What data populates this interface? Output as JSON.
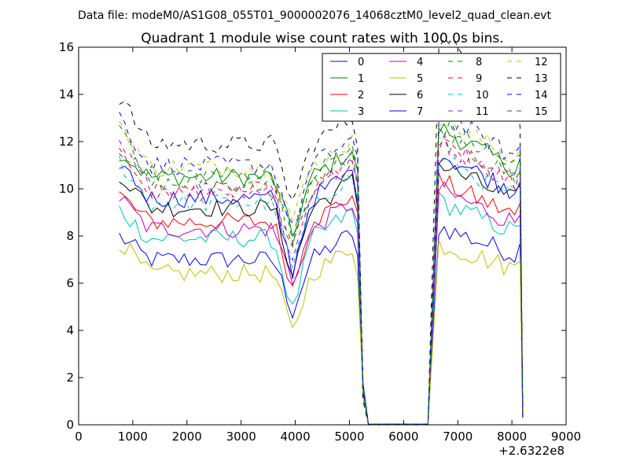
{
  "chart_data": {
    "type": "line",
    "suptitle": "Data file: modeM0/AS1G08_055T01_9000002076_14068cztM0_level2_quad_clean.evt",
    "title": "Quadrant 1 module wise count rates with 100.0s bins.",
    "xlabel": "",
    "ylabel": "",
    "x_offset_label": "+2.6322e8",
    "xlim": [
      0,
      9000
    ],
    "ylim": [
      0,
      16
    ],
    "x_ticks": [
      "0",
      "1000",
      "2000",
      "3000",
      "4000",
      "5000",
      "6000",
      "7000",
      "8000",
      "9000"
    ],
    "y_ticks": [
      "0",
      "2",
      "4",
      "6",
      "8",
      "10",
      "12",
      "14",
      "16"
    ],
    "grid": false,
    "legend_position": "top-right",
    "x": [
      750,
      850,
      950,
      1050,
      1150,
      1250,
      1350,
      1450,
      1550,
      1650,
      1750,
      1850,
      1950,
      2050,
      2150,
      2250,
      2350,
      2450,
      2550,
      2650,
      2750,
      2850,
      2950,
      3050,
      3150,
      3250,
      3350,
      3450,
      3550,
      3650,
      3750,
      3850,
      3950,
      4050,
      4150,
      4250,
      4350,
      4450,
      4550,
      4650,
      4750,
      4850,
      4950,
      5050,
      5150,
      5250,
      5350,
      5450,
      5550,
      5650,
      5750,
      5850,
      5950,
      6050,
      6150,
      6250,
      6350,
      6450,
      6550,
      6650,
      6750,
      6850,
      6950,
      7050,
      7150,
      7250,
      7350,
      7450,
      7550,
      7650,
      7750,
      7850,
      7950,
      8050,
      8150,
      8200
    ],
    "series": [
      {
        "name": "0",
        "color": "#0000ff",
        "dash": "solid",
        "level": 7.0
      },
      {
        "name": "1",
        "color": "#008000",
        "dash": "solid",
        "level": 10.5
      },
      {
        "name": "2",
        "color": "#ff0000",
        "dash": "solid",
        "level": 8.6
      },
      {
        "name": "3",
        "color": "#00bfbf",
        "dash": "solid",
        "level": 7.9
      },
      {
        "name": "4",
        "color": "#bf00bf",
        "dash": "solid",
        "level": 8.3
      },
      {
        "name": "5",
        "color": "#bfbf00",
        "dash": "solid",
        "level": 6.4
      },
      {
        "name": "6",
        "color": "#000000",
        "dash": "solid",
        "level": 9.2
      },
      {
        "name": "7",
        "color": "#0000ff",
        "dash": "solid",
        "level": 9.6
      },
      {
        "name": "8",
        "color": "#008000",
        "dash": "dashed",
        "level": 10.2
      },
      {
        "name": "9",
        "color": "#ff0000",
        "dash": "dashed",
        "level": 9.9
      },
      {
        "name": "10",
        "color": "#00bfbf",
        "dash": "dashed",
        "level": 9.4
      },
      {
        "name": "11",
        "color": "#bf00bf",
        "dash": "dashed",
        "level": 10.0
      },
      {
        "name": "12",
        "color": "#bfbf00",
        "dash": "dashed",
        "level": 10.9
      },
      {
        "name": "13",
        "color": "#000000",
        "dash": "dashed",
        "level": 11.9
      },
      {
        "name": "14",
        "color": "#0000ff",
        "dash": "dashed",
        "level": 11.0
      },
      {
        "name": "15",
        "color": "#008000",
        "dash": "dashed",
        "level": 10.6
      }
    ],
    "segment_profile": {
      "first_segment_x_range": [
        750,
        5150
      ],
      "gap_x_range": [
        5350,
        6450
      ],
      "second_segment_x_range": [
        6550,
        8150
      ],
      "dip_near_x": 3950,
      "dip_value_range": [
        4.6,
        7.3
      ]
    }
  }
}
